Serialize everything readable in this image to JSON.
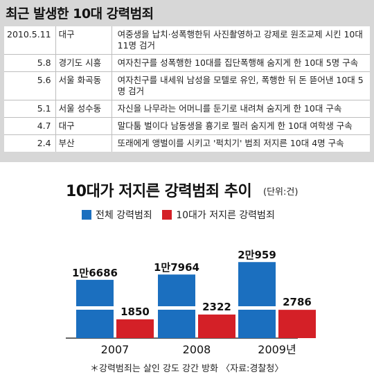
{
  "header": {
    "title": "최근 발생한 10대 강력범죄"
  },
  "incidents": [
    {
      "date": "2010.5.11",
      "place": "대구",
      "desc": "여중생을 납치·성폭행한뒤 사진촬영하고 강제로 원조교제 시킨 10대 11명 검거"
    },
    {
      "date": "5.8",
      "place": "경기도 시흥",
      "desc": "여자친구를 성폭행한 10대를 집단폭행해 숨지게 한 10대 5명 구속"
    },
    {
      "date": "5.6",
      "place": "서울 화곡동",
      "desc": "여자친구를 내세워 남성을 모텔로 유인, 폭행한 뒤 돈 뜯어낸 10대 5명 검거"
    },
    {
      "date": "5.1",
      "place": "서울 성수동",
      "desc": "자신을 나무라는 어머니를 둔기로 내려쳐 숨지게 한 10대 구속"
    },
    {
      "date": "4.7",
      "place": "대구",
      "desc": "말다툼 벌이다 남동생을 흉기로 찔러 숨지게 한 10대 여학생 구속"
    },
    {
      "date": "2.4",
      "place": "부산",
      "desc": "또래에게 앵벌이를 시키고 '퍽치기' 범죄 저지른 10대 4명 구속"
    }
  ],
  "chart_data": {
    "type": "bar",
    "title": "10대가 저지른 강력범죄 추이",
    "unit": "(단위:건)",
    "categories": [
      "2007",
      "2008",
      "2009년"
    ],
    "series": [
      {
        "name": "전체 강력범죄",
        "color": "#1b6fbf",
        "values": [
          16686,
          17964,
          20959
        ],
        "labels": [
          "1만6686",
          "1만7964",
          "2만959"
        ]
      },
      {
        "name": "10대가 저지른 강력범죄",
        "color": "#d42027",
        "values": [
          1850,
          2322,
          2786
        ],
        "labels": [
          "1850",
          "2322",
          "2786"
        ]
      }
    ],
    "axis_break": true
  },
  "footnote": "＊강력범죄는 살인 강도 강간 방화 〈자료:경찰청〉"
}
